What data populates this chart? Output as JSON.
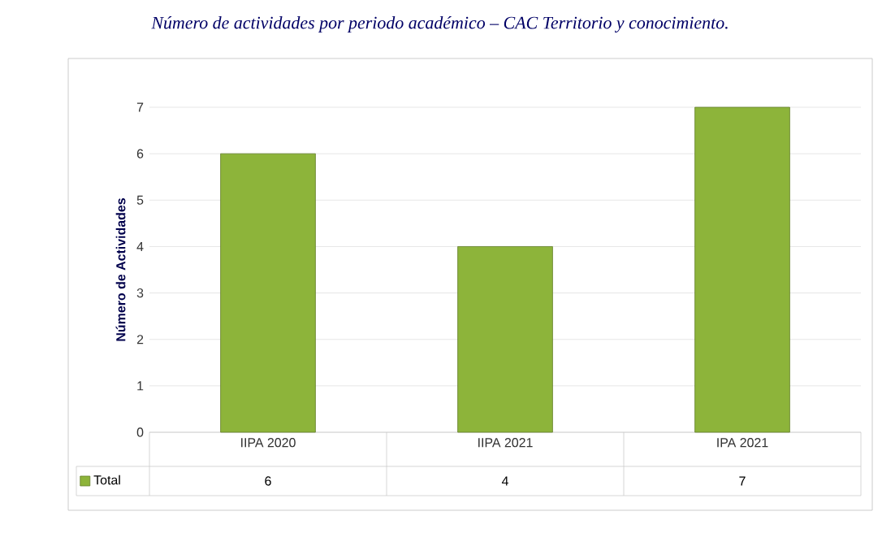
{
  "chart_data": {
    "type": "bar",
    "title": "Número de actividades por periodo académico – CAC Territorio y conocimiento.",
    "ylabel": "Número de Actividades",
    "categories": [
      "IIPA 2020",
      "IIPA 2021",
      "IPA 2021"
    ],
    "series": [
      {
        "name": "Total",
        "color": "#8db43a",
        "values": [
          6,
          4,
          7
        ]
      }
    ],
    "ylim": [
      0,
      7
    ],
    "yticks": [
      0,
      1,
      2,
      3,
      4,
      5,
      6,
      7
    ],
    "grid": "y",
    "data_labels": true,
    "legend": "bottom"
  }
}
